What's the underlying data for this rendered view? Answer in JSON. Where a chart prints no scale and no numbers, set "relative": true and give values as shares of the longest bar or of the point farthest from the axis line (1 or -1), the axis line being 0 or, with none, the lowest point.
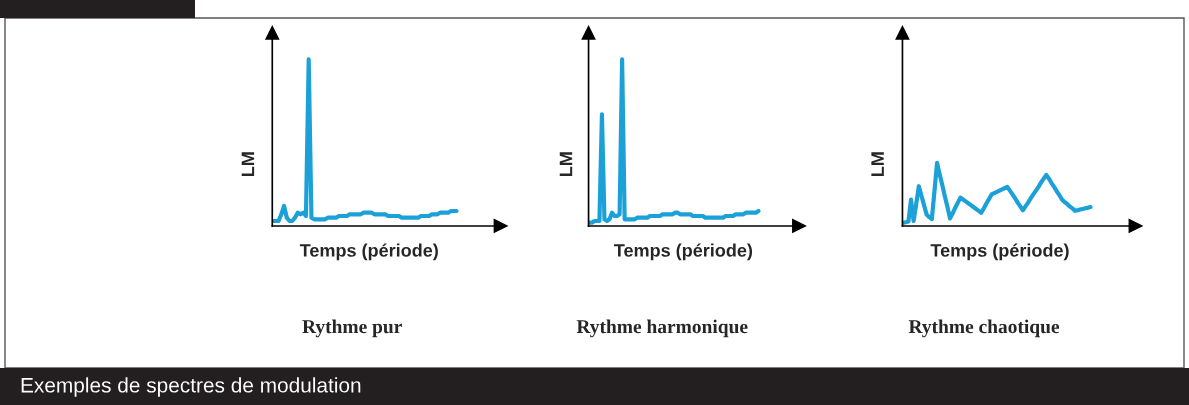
{
  "chart_data": [
    {
      "type": "line",
      "title": "Rythme pur",
      "xlabel": "Temps (période)",
      "ylabel": "LM",
      "relative": true,
      "legend": false,
      "marker": "none",
      "line_style": "solid",
      "annotations": [
        "Exemples de spectres de modulation"
      ],
      "categories": [
        null,
        null,
        null,
        null,
        null,
        null,
        null,
        null,
        null,
        null,
        null,
        null,
        null,
        null,
        null,
        null,
        null,
        null,
        null,
        null,
        null,
        null,
        null,
        null,
        null,
        null,
        null,
        null,
        null,
        null,
        null,
        null,
        null,
        null,
        null,
        null,
        null,
        null,
        null,
        null,
        null,
        null,
        null,
        null,
        null,
        null,
        null,
        null,
        null,
        null,
        null,
        null,
        null,
        null,
        null,
        null,
        null,
        null,
        null,
        null,
        null,
        null,
        null,
        null,
        null,
        null,
        null,
        null
      ],
      "series": [
        {
          "color": "#1ba1d8",
          "values": [
            0.03,
            0.03,
            0.03,
            0.07,
            0.12,
            0.05,
            0.03,
            0.03,
            0.05,
            0.08,
            0.07,
            0.08,
            0.06,
            1.0,
            0.05,
            0.04,
            0.04,
            0.04,
            0.04,
            0.04,
            0.05,
            0.05,
            0.05,
            0.05,
            0.06,
            0.06,
            0.06,
            0.06,
            0.07,
            0.07,
            0.07,
            0.07,
            0.07,
            0.08,
            0.08,
            0.08,
            0.08,
            0.07,
            0.07,
            0.07,
            0.07,
            0.07,
            0.06,
            0.06,
            0.06,
            0.06,
            0.06,
            0.05,
            0.05,
            0.05,
            0.05,
            0.05,
            0.05,
            0.05,
            0.06,
            0.06,
            0.06,
            0.06,
            0.07,
            0.07,
            0.07,
            0.08,
            0.08,
            0.08,
            0.08,
            0.09,
            0.09,
            0.09
          ]
        }
      ]
    },
    {
      "type": "line",
      "title": "Rythme harmonique",
      "xlabel": "Temps (période)",
      "ylabel": "LM",
      "relative": true,
      "legend": false,
      "marker": "none",
      "line_style": "solid",
      "categories": [
        null,
        null,
        null,
        null,
        null,
        null,
        null,
        null,
        null,
        null,
        null,
        null,
        null,
        null,
        null,
        null,
        null,
        null,
        null,
        null,
        null,
        null,
        null,
        null,
        null,
        null,
        null,
        null,
        null,
        null,
        null,
        null,
        null,
        null,
        null,
        null,
        null,
        null,
        null,
        null,
        null,
        null,
        null,
        null,
        null,
        null,
        null,
        null,
        null,
        null,
        null,
        null,
        null,
        null,
        null,
        null,
        null,
        null,
        null,
        null,
        null,
        null,
        null,
        null,
        null,
        null,
        null,
        null
      ],
      "series": [
        {
          "color": "#1ba1d8",
          "values": [
            0.02,
            0.02,
            0.03,
            0.03,
            0.03,
            0.67,
            0.04,
            0.03,
            0.04,
            0.08,
            0.06,
            0.06,
            0.07,
            1.0,
            0.04,
            0.04,
            0.04,
            0.04,
            0.04,
            0.05,
            0.05,
            0.05,
            0.05,
            0.05,
            0.06,
            0.06,
            0.06,
            0.06,
            0.06,
            0.07,
            0.07,
            0.07,
            0.07,
            0.07,
            0.08,
            0.08,
            0.07,
            0.07,
            0.07,
            0.07,
            0.07,
            0.06,
            0.06,
            0.06,
            0.06,
            0.06,
            0.05,
            0.05,
            0.05,
            0.05,
            0.05,
            0.05,
            0.05,
            0.05,
            0.06,
            0.06,
            0.06,
            0.06,
            0.07,
            0.07,
            0.07,
            0.07,
            0.08,
            0.08,
            0.08,
            0.08,
            0.08,
            0.09
          ]
        }
      ]
    },
    {
      "type": "line",
      "title": "Rythme chaotique",
      "xlabel": "Temps (période)",
      "ylabel": "LM",
      "relative": true,
      "legend": false,
      "marker": "none",
      "line_style": "solid",
      "categories": [
        null,
        null,
        null,
        null,
        null,
        null,
        null,
        null,
        null,
        null,
        null,
        null,
        null,
        null,
        null,
        null,
        null,
        null,
        null,
        null,
        null,
        null,
        null,
        null,
        null,
        null,
        null,
        null,
        null,
        null,
        null,
        null,
        null,
        null,
        null,
        null,
        null,
        null,
        null,
        null,
        null,
        null,
        null,
        null,
        null,
        null,
        null,
        null,
        null,
        null,
        null,
        null,
        null,
        null,
        null,
        null,
        null,
        null,
        null,
        null,
        null,
        null,
        null,
        null,
        null,
        null,
        null,
        null,
        null,
        null,
        null,
        null,
        null
      ],
      "series": [
        {
          "color": "#1ba1d8",
          "values": [
            0.05,
            0.06,
            0.07,
            0.42,
            0.08,
            0.35,
            0.63,
            0.48,
            0.33,
            0.18,
            0.14,
            0.11,
            0.55,
            1.0,
            0.82,
            0.65,
            0.47,
            0.3,
            0.12,
            0.2,
            0.29,
            0.37,
            0.45,
            0.42,
            0.39,
            0.36,
            0.33,
            0.3,
            0.27,
            0.24,
            0.21,
            0.28,
            0.36,
            0.43,
            0.5,
            0.52,
            0.54,
            0.56,
            0.58,
            0.6,
            0.62,
            0.56,
            0.5,
            0.44,
            0.37,
            0.31,
            0.25,
            0.31,
            0.37,
            0.44,
            0.5,
            0.56,
            0.62,
            0.69,
            0.75,
            0.81,
            0.75,
            0.68,
            0.62,
            0.55,
            0.49,
            0.42,
            0.38,
            0.35,
            0.31,
            0.28,
            0.24,
            0.25,
            0.26,
            0.27,
            0.28,
            0.29,
            0.3
          ]
        }
      ]
    }
  ]
}
